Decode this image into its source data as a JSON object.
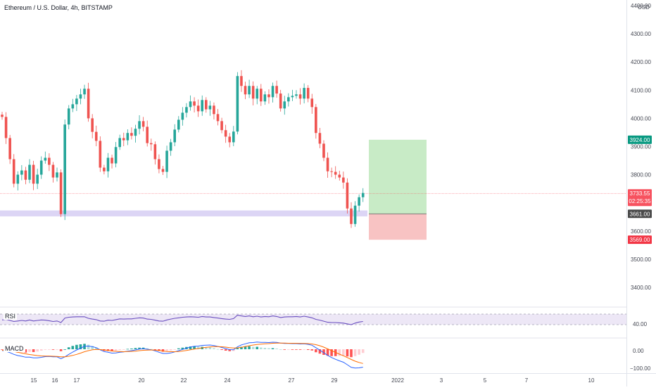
{
  "header": {
    "symbol": "Ethereum / U.S. Dollar, 4h, BITSTAMP"
  },
  "price_axis": {
    "currency": "USD",
    "ticks": [
      "4400.00",
      "4300.00",
      "4200.00",
      "4100.00",
      "4000.00",
      "3900.00",
      "3800.00",
      "3700.00",
      "3600.00",
      "3500.00",
      "3400.00"
    ]
  },
  "badges": {
    "target": "3924.00",
    "current": "3733.55",
    "countdown": "02:25:35",
    "entry": "3661.00",
    "stop": "3569.00"
  },
  "rsi": {
    "label": "RSI",
    "axis_tick": "40.00"
  },
  "macd": {
    "label": "MACD",
    "axis_ticks": [
      "0.00",
      "−100.00"
    ]
  },
  "time_axis": {
    "ticks": [
      "15",
      "16",
      "17",
      "20",
      "22",
      "24",
      "27",
      "29",
      "2022",
      "3",
      "5",
      "7",
      "10"
    ]
  },
  "colors": {
    "up": "#26a69a",
    "down": "#ef5350",
    "profit_zone": "#c8ebc6",
    "loss_zone": "#f8c3c3",
    "support_band": "#dcd5f5",
    "rsi_line": "#6a4fc0",
    "rsi_band": "#ede7f6"
  },
  "chart_data": {
    "type": "candlestick",
    "title": "Ethereum / U.S. Dollar, 4h, BITSTAMP",
    "ylim": [
      3330,
      4420
    ],
    "y_ticks": [
      4400,
      4300,
      4200,
      4100,
      4000,
      3900,
      3800,
      3700,
      3600,
      3500,
      3400
    ],
    "x_labels": [
      "15",
      "16",
      "17",
      "20",
      "22",
      "24",
      "27",
      "29",
      "2022",
      "3",
      "5",
      "7",
      "10"
    ],
    "close": [
      4005,
      3930,
      3855,
      3768,
      3800,
      3815,
      3782,
      3835,
      3768,
      3800,
      3850,
      3860,
      3835,
      3790,
      3808,
      3660,
      3978,
      4035,
      4050,
      4070,
      4085,
      4105,
      4000,
      3952,
      3920,
      3825,
      3812,
      3860,
      3840,
      3898,
      3930,
      3922,
      3948,
      3938,
      3963,
      3990,
      3970,
      3912,
      3908,
      3855,
      3820,
      3810,
      3885,
      3915,
      3960,
      3995,
      4020,
      4040,
      4060,
      4045,
      4025,
      4065,
      4032,
      4045,
      4015,
      3990,
      3958,
      3935,
      3915,
      3953,
      4150,
      4115,
      4085,
      4115,
      4070,
      4105,
      4060,
      4085,
      4075,
      4115,
      4088,
      4035,
      4060,
      4075,
      4080,
      4085,
      4070,
      4108,
      4070,
      4040,
      3948,
      3910,
      3860,
      3812,
      3810,
      3800,
      3790,
      3772,
      3680,
      3625,
      3690,
      3720,
      3735
    ],
    "series": [
      {
        "name": "RSI",
        "values": [
          48,
          50,
          46,
          42,
          44,
          46,
          44,
          48,
          44,
          46,
          48,
          47,
          45,
          42,
          44,
          38,
          55,
          58,
          59,
          60,
          60,
          60,
          54,
          51,
          49,
          44,
          43,
          47,
          46,
          49,
          52,
          51,
          52,
          52,
          54,
          56,
          55,
          51,
          50,
          47,
          44,
          43,
          48,
          51,
          54,
          56,
          58,
          59,
          60,
          59,
          58,
          61,
          59,
          59,
          57,
          55,
          53,
          51,
          50,
          53,
          66,
          63,
          61,
          63,
          60,
          62,
          59,
          61,
          60,
          63,
          61,
          57,
          59,
          60,
          60,
          61,
          59,
          62,
          59,
          56,
          50,
          47,
          43,
          39,
          38,
          38,
          37,
          36,
          33,
          30,
          36,
          40,
          42
        ]
      },
      {
        "name": "MACD",
        "values": [
          -7,
          -12,
          -19,
          -29,
          -36,
          -40,
          -45,
          -45,
          -49,
          -49,
          -46,
          -42,
          -41,
          -43,
          -43,
          -54,
          -43,
          -29,
          -16,
          -4,
          6,
          17,
          18,
          15,
          9,
          -3,
          -13,
          -17,
          -22,
          -21,
          -17,
          -15,
          -11,
          -8,
          -4,
          1,
          3,
          0,
          -3,
          -9,
          -17,
          -24,
          -24,
          -21,
          -15,
          -8,
          -1,
          6,
          13,
          17,
          18,
          22,
          23,
          24,
          21,
          16,
          10,
          4,
          -2,
          -3,
          14,
          25,
          31,
          37,
          38,
          41,
          39,
          39,
          38,
          40,
          39,
          35,
          33,
          33,
          32,
          32,
          30,
          31,
          28,
          23,
          9,
          -5,
          -20,
          -35,
          -47,
          -57,
          -66,
          -74,
          -88,
          -103,
          -107,
          -106,
          -102
        ]
      },
      {
        "name": "Signal",
        "values": [
          -6,
          -7,
          -9,
          -13,
          -17,
          -22,
          -26,
          -30,
          -33,
          -36,
          -38,
          -39,
          -39,
          -40,
          -41,
          -43,
          -43,
          -40,
          -35,
          -29,
          -22,
          -14,
          -8,
          -3,
          -1,
          -2,
          -4,
          -7,
          -10,
          -12,
          -13,
          -14,
          -13,
          -12,
          -11,
          -8,
          -6,
          -5,
          -4,
          -5,
          -7,
          -10,
          -13,
          -14,
          -14,
          -13,
          -10,
          -7,
          -3,
          1,
          4,
          8,
          11,
          13,
          15,
          15,
          14,
          12,
          9,
          7,
          8,
          11,
          16,
          20,
          24,
          27,
          29,
          31,
          32,
          34,
          35,
          35,
          35,
          34,
          34,
          34,
          33,
          33,
          32,
          30,
          26,
          20,
          12,
          2,
          -8,
          -18,
          -28,
          -37,
          -47,
          -58,
          -68,
          -75,
          -81
        ]
      }
    ],
    "annotations": {
      "target": 3924,
      "entry": 3661,
      "stop": 3569,
      "current": 3733.55,
      "support_zone": [
        3652,
        3673
      ]
    }
  }
}
